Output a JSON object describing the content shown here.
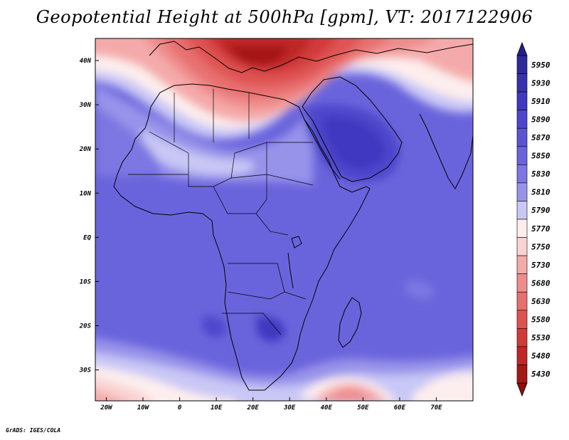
{
  "title": "Geopotential Height at 500hPa [gpm], VT: 2017122906",
  "footer": "GrADS: IGES/COLA",
  "map": {
    "region": "Africa, Arabian Peninsula, Mediterranean, western Indian Ocean",
    "variable": "Geopotential Height at 500hPa",
    "units": "gpm",
    "valid_time": "2017122906",
    "lon_range": [
      -23,
      80
    ],
    "lat_range": [
      -37,
      45
    ],
    "lon_ticks": [
      {
        "value": -20,
        "label": "20W"
      },
      {
        "value": -10,
        "label": "10W"
      },
      {
        "value": 0,
        "label": "0"
      },
      {
        "value": 10,
        "label": "10E"
      },
      {
        "value": 20,
        "label": "20E"
      },
      {
        "value": 30,
        "label": "30E"
      },
      {
        "value": 40,
        "label": "40E"
      },
      {
        "value": 50,
        "label": "50E"
      },
      {
        "value": 60,
        "label": "60E"
      },
      {
        "value": 70,
        "label": "70E"
      }
    ],
    "lat_ticks": [
      {
        "value": 40,
        "label": "40N"
      },
      {
        "value": 30,
        "label": "30N"
      },
      {
        "value": 20,
        "label": "20N"
      },
      {
        "value": 10,
        "label": "10N"
      },
      {
        "value": 0,
        "label": "EQ"
      },
      {
        "value": -10,
        "label": "10S"
      },
      {
        "value": -20,
        "label": "20S"
      },
      {
        "value": -30,
        "label": "30S"
      }
    ]
  },
  "colorbar": {
    "levels": [
      {
        "label": "5950",
        "color": "#2e2a9e"
      },
      {
        "label": "5930",
        "color": "#3731b0"
      },
      {
        "label": "5910",
        "color": "#4038c0"
      },
      {
        "label": "5890",
        "color": "#4d46cc"
      },
      {
        "label": "5870",
        "color": "#5b55d4"
      },
      {
        "label": "5850",
        "color": "#6a64dc"
      },
      {
        "label": "5830",
        "color": "#7c77e2"
      },
      {
        "label": "5810",
        "color": "#9893ea"
      },
      {
        "label": "5790",
        "color": "#c9c7f5"
      },
      {
        "label": "5770",
        "color": "#fdeeee"
      },
      {
        "label": "5750",
        "color": "#fad2d2"
      },
      {
        "label": "5730",
        "color": "#f4aaaa"
      },
      {
        "label": "5680",
        "color": "#ef8c8c"
      },
      {
        "label": "5630",
        "color": "#e86f6f"
      },
      {
        "label": "5580",
        "color": "#df5252"
      },
      {
        "label": "5530",
        "color": "#d23a3a"
      },
      {
        "label": "5480",
        "color": "#bf2727"
      },
      {
        "label": "5430",
        "color": "#a51818"
      }
    ],
    "top_arrow_color": "#23208c",
    "bottom_arrow_color": "#8c1010"
  }
}
